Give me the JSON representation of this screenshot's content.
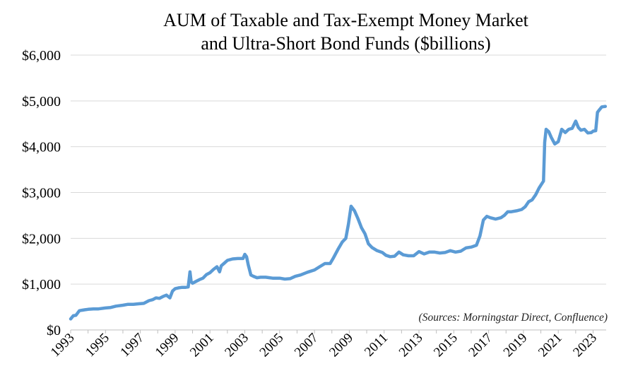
{
  "chart_data": {
    "type": "line",
    "title": [
      "AUM of Taxable and Tax-Exempt Money Market",
      "and Ultra-Short Bond Funds ($billions)"
    ],
    "annotation": "(Sources: Morningstar Direct, Confluence)",
    "xlabel": "",
    "ylabel": "",
    "xlim": [
      1993,
      2023.75
    ],
    "ylim": [
      0,
      6000
    ],
    "x_ticks": [
      "1993",
      "1995",
      "1997",
      "1999",
      "2001",
      "2003",
      "2005",
      "2007",
      "2009",
      "2011",
      "2013",
      "2015",
      "2017",
      "2019",
      "2021",
      "2023"
    ],
    "y_ticks": [
      "$0",
      "$1,000",
      "$2,000",
      "$3,000",
      "$4,000",
      "$5,000",
      "$6,000"
    ],
    "y_tick_values": [
      0,
      1000,
      2000,
      3000,
      4000,
      5000,
      6000
    ],
    "grid": "horizontal",
    "legend": "none",
    "line_color": "#5B9BD5",
    "series": [
      {
        "x": [
          1993.0,
          1993.15,
          1993.3,
          1993.5,
          1993.65,
          1993.8,
          1994.0,
          1994.3,
          1994.6,
          1995.0,
          1995.3,
          1995.6,
          1996.0,
          1996.3,
          1996.6,
          1996.9,
          1997.2,
          1997.5,
          1997.7,
          1997.9,
          1998.1,
          1998.3,
          1998.5,
          1998.7,
          1998.85,
          1999.0,
          1999.2,
          1999.4,
          1999.6,
          1999.75,
          1999.85,
          1999.92,
          2000.0,
          2000.2,
          2000.4,
          2000.6,
          2000.8,
          2001.0,
          2001.2,
          2001.4,
          2001.55,
          2001.65,
          2001.8,
          2002.0,
          2002.3,
          2002.6,
          2002.9,
          2003.0,
          2003.1,
          2003.2,
          2003.35,
          2003.5,
          2003.7,
          2003.9,
          2004.2,
          2004.6,
          2005.0,
          2005.3,
          2005.6,
          2005.9,
          2006.2,
          2006.6,
          2007.0,
          2007.3,
          2007.6,
          2007.9,
          2008.1,
          2008.35,
          2008.6,
          2008.8,
          2008.95,
          2009.1,
          2009.3,
          2009.5,
          2009.7,
          2009.9,
          2010.1,
          2010.3,
          2010.6,
          2010.9,
          2011.1,
          2011.35,
          2011.6,
          2011.85,
          2012.1,
          2012.4,
          2012.7,
          2013.0,
          2013.3,
          2013.6,
          2013.9,
          2014.2,
          2014.5,
          2014.8,
          2015.1,
          2015.4,
          2015.7,
          2016.0,
          2016.3,
          2016.5,
          2016.7,
          2016.9,
          2017.1,
          2017.4,
          2017.7,
          2017.9,
          2018.1,
          2018.3,
          2018.6,
          2018.9,
          2019.1,
          2019.3,
          2019.5,
          2019.7,
          2019.9,
          2020.05,
          2020.15,
          2020.22,
          2020.3,
          2020.45,
          2020.6,
          2020.8,
          2021.0,
          2021.2,
          2021.4,
          2021.6,
          2021.8,
          2022.0,
          2022.15,
          2022.3,
          2022.5,
          2022.7,
          2022.9,
          2023.0,
          2023.15,
          2023.25,
          2023.35,
          2023.5,
          2023.7
        ],
        "y": [
          240,
          310,
          320,
          420,
          430,
          440,
          450,
          460,
          460,
          480,
          490,
          520,
          540,
          560,
          560,
          570,
          580,
          640,
          660,
          700,
          690,
          730,
          760,
          700,
          850,
          900,
          920,
          930,
          930,
          940,
          1270,
          1050,
          1020,
          1060,
          1100,
          1130,
          1210,
          1250,
          1320,
          1380,
          1270,
          1400,
          1450,
          1520,
          1550,
          1560,
          1560,
          1650,
          1600,
          1420,
          1200,
          1170,
          1140,
          1150,
          1150,
          1130,
          1130,
          1110,
          1120,
          1170,
          1200,
          1260,
          1310,
          1380,
          1450,
          1450,
          1580,
          1760,
          1920,
          2000,
          2310,
          2700,
          2600,
          2430,
          2230,
          2100,
          1880,
          1800,
          1730,
          1690,
          1630,
          1600,
          1610,
          1700,
          1640,
          1620,
          1620,
          1710,
          1660,
          1700,
          1700,
          1680,
          1690,
          1730,
          1700,
          1720,
          1790,
          1810,
          1850,
          2050,
          2400,
          2480,
          2450,
          2420,
          2450,
          2500,
          2580,
          2580,
          2600,
          2630,
          2690,
          2800,
          2840,
          2950,
          3100,
          3190,
          3250,
          4100,
          4380,
          4330,
          4200,
          4060,
          4110,
          4380,
          4310,
          4380,
          4400,
          4560,
          4420,
          4360,
          4380,
          4300,
          4310,
          4340,
          4350,
          4750,
          4800,
          4870,
          4880
        ]
      }
    ]
  }
}
